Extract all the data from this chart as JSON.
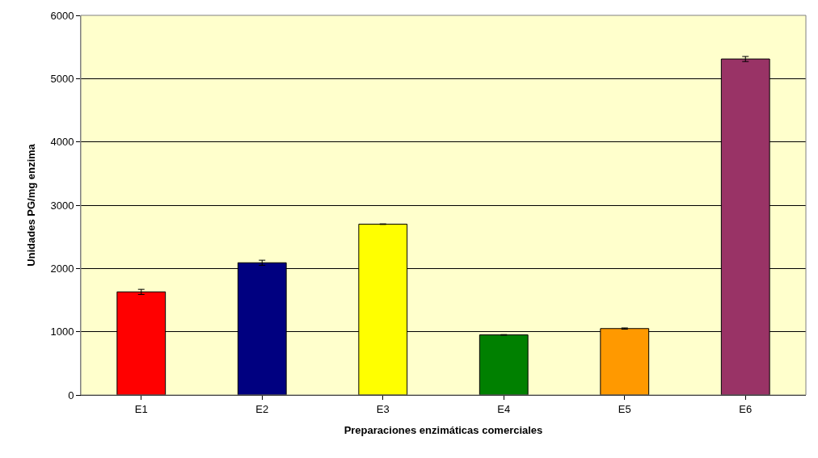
{
  "chart_data": {
    "type": "bar",
    "xlabel": "Preparaciones enzimáticas comerciales",
    "ylabel": "Unidades PG/mg enzima",
    "categories": [
      "E1",
      "E2",
      "E3",
      "E4",
      "E5",
      "E6"
    ],
    "values": [
      1630,
      2090,
      2700,
      950,
      1050,
      5310
    ],
    "errors": [
      40,
      40,
      5,
      5,
      10,
      40
    ],
    "colors": [
      "#ff0000",
      "#000080",
      "#ffff00",
      "#008000",
      "#ff9900",
      "#993366"
    ],
    "ylim": [
      0,
      6000
    ],
    "yticks": [
      0,
      1000,
      2000,
      3000,
      4000,
      5000,
      6000
    ],
    "grid": "y"
  }
}
